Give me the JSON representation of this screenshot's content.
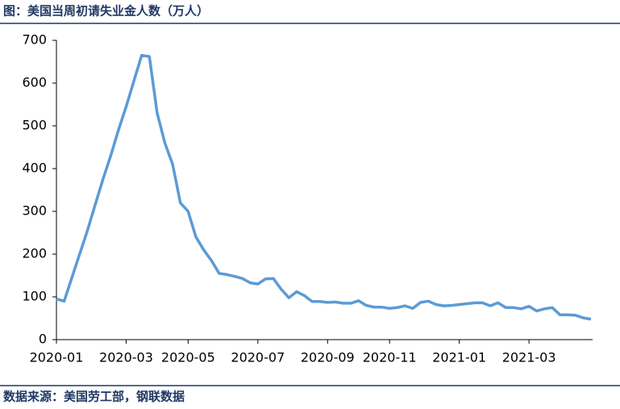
{
  "chart_data": {
    "type": "line",
    "title": "图：美国当周初请失业金人数（万人）",
    "source": "数据来源：美国劳工部，钢联数据",
    "color": "#5b9bd5",
    "categories": [
      "2020-01",
      null,
      null,
      null,
      null,
      null,
      null,
      null,
      null,
      "2020-03",
      null,
      null,
      null,
      null,
      null,
      null,
      null,
      "2020-05",
      null,
      null,
      null,
      null,
      null,
      null,
      null,
      null,
      "2020-07",
      null,
      null,
      null,
      null,
      null,
      null,
      null,
      null,
      "2020-09",
      null,
      null,
      null,
      null,
      null,
      null,
      null,
      "2020-11",
      null,
      null,
      null,
      null,
      null,
      null,
      null,
      null,
      "2021-01",
      null,
      null,
      null,
      null,
      null,
      null,
      null,
      null,
      "2021-03",
      null,
      null,
      null,
      null,
      null,
      null,
      null,
      null
    ],
    "values": [
      95,
      90,
      145,
      200,
      255,
      315,
      375,
      430,
      490,
      545,
      605,
      665,
      662,
      530,
      460,
      410,
      320,
      300,
      240,
      210,
      185,
      155,
      152,
      148,
      143,
      133,
      130,
      142,
      143,
      118,
      98,
      112,
      103,
      89,
      89,
      87,
      88,
      85,
      85,
      91,
      80,
      76,
      76,
      73,
      75,
      79,
      73,
      87,
      90,
      82,
      79,
      80,
      82,
      84,
      86,
      86,
      79,
      86,
      75,
      75,
      72,
      78,
      67,
      72,
      75,
      58,
      58,
      57,
      51,
      48
    ],
    "ylim": [
      0,
      700
    ],
    "yticks": [
      0,
      100,
      200,
      300,
      400,
      500,
      600,
      700
    ],
    "grid": false
  }
}
